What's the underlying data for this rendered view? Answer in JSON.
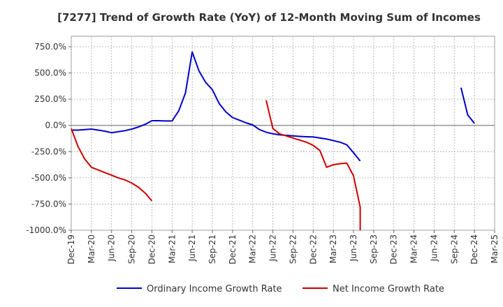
{
  "chart_data": {
    "type": "line",
    "title": "[7277]  Trend of Growth Rate (YoY) of 12-Month Moving Sum of Incomes",
    "xlabel": "",
    "ylabel": "",
    "x_ticks": [
      "Dec-19",
      "Mar-20",
      "Jun-20",
      "Sep-20",
      "Dec-20",
      "Mar-21",
      "Jun-21",
      "Sep-21",
      "Dec-21",
      "Mar-22",
      "Jun-22",
      "Sep-22",
      "Dec-22",
      "Mar-23",
      "Jun-23",
      "Sep-23",
      "Dec-23",
      "Mar-24",
      "Jun-24",
      "Sep-24",
      "Dec-24",
      "Mar-25"
    ],
    "y_ticks": [
      "750.0%",
      "500.0%",
      "250.0%",
      "0.0%",
      "-250.0%",
      "-500.0%",
      "-750.0%",
      "-1000.0%"
    ],
    "y_tick_values": [
      750,
      500,
      250,
      0,
      -250,
      -500,
      -750,
      -1000
    ],
    "ylim": [
      -1000,
      850
    ],
    "grid": true,
    "legend_position": "bottom",
    "series": [
      {
        "name": "Ordinary Income Growth Rate",
        "color": "#0000cc",
        "segments": [
          [
            [
              "Dec-19",
              -45
            ],
            [
              "Jan-20",
              -45
            ],
            [
              "Feb-20",
              -40
            ],
            [
              "Mar-20",
              -35
            ],
            [
              "Apr-20",
              -45
            ],
            [
              "May-20",
              -55
            ],
            [
              "Jun-20",
              -70
            ],
            [
              "Jul-20",
              -60
            ],
            [
              "Aug-20",
              -50
            ],
            [
              "Sep-20",
              -35
            ],
            [
              "Oct-20",
              -15
            ],
            [
              "Nov-20",
              10
            ],
            [
              "Dec-20",
              45
            ],
            [
              "Jan-21",
              45
            ],
            [
              "Feb-21",
              42
            ],
            [
              "Mar-21",
              42
            ],
            [
              "Apr-21",
              140
            ],
            [
              "May-21",
              310
            ],
            [
              "Jun-21",
              700
            ],
            [
              "Jul-21",
              520
            ],
            [
              "Aug-21",
              410
            ],
            [
              "Sep-21",
              340
            ],
            [
              "Oct-21",
              210
            ],
            [
              "Nov-21",
              130
            ],
            [
              "Dec-21",
              75
            ],
            [
              "Jan-22",
              50
            ],
            [
              "Feb-22",
              25
            ],
            [
              "Mar-22",
              5
            ],
            [
              "Apr-22",
              -40
            ],
            [
              "May-22",
              -65
            ],
            [
              "Jun-22",
              -80
            ],
            [
              "Jul-22",
              -90
            ],
            [
              "Aug-22",
              -95
            ],
            [
              "Sep-22",
              -100
            ],
            [
              "Oct-22",
              -105
            ],
            [
              "Nov-22",
              -108
            ],
            [
              "Dec-22",
              -110
            ],
            [
              "Jan-23",
              -120
            ],
            [
              "Feb-23",
              -130
            ],
            [
              "Mar-23",
              -145
            ],
            [
              "Apr-23",
              -160
            ],
            [
              "May-23",
              -185
            ],
            [
              "Jun-23",
              -260
            ],
            [
              "Jul-23",
              -340
            ]
          ],
          [
            [
              "Oct-24",
              360
            ],
            [
              "Nov-24",
              100
            ],
            [
              "Dec-24",
              20
            ]
          ]
        ]
      },
      {
        "name": "Net Income Growth Rate",
        "color": "#cc0000",
        "segments": [
          [
            [
              "Dec-19",
              -30
            ],
            [
              "Jan-20",
              -200
            ],
            [
              "Feb-20",
              -320
            ],
            [
              "Mar-20",
              -400
            ],
            [
              "Apr-20",
              -425
            ],
            [
              "May-20",
              -450
            ],
            [
              "Jun-20",
              -475
            ],
            [
              "Jul-20",
              -500
            ],
            [
              "Aug-20",
              -520
            ],
            [
              "Sep-20",
              -550
            ],
            [
              "Oct-20",
              -590
            ],
            [
              "Nov-20",
              -645
            ],
            [
              "Dec-20",
              -720
            ]
          ],
          [
            [
              "May-22",
              240
            ],
            [
              "Jun-22",
              -30
            ],
            [
              "Jul-22",
              -80
            ],
            [
              "Aug-22",
              -100
            ],
            [
              "Sep-22",
              -120
            ],
            [
              "Oct-22",
              -140
            ],
            [
              "Nov-22",
              -160
            ],
            [
              "Dec-22",
              -190
            ],
            [
              "Jan-23",
              -240
            ],
            [
              "Feb-23",
              -400
            ],
            [
              "Mar-23",
              -375
            ],
            [
              "Apr-23",
              -365
            ],
            [
              "May-23",
              -360
            ],
            [
              "Jun-23",
              -480
            ],
            [
              "Jul-23",
              -780
            ],
            [
              "Jul-23",
              -1000
            ]
          ]
        ]
      }
    ]
  }
}
